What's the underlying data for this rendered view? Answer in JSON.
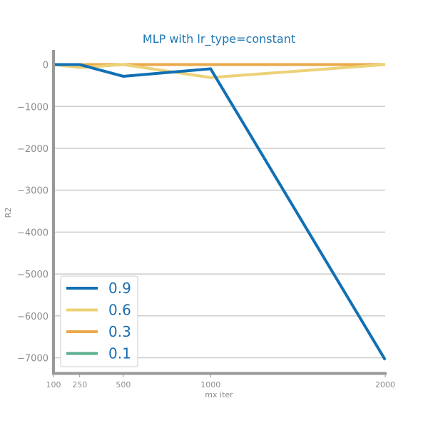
{
  "chart_data": {
    "type": "line",
    "title": "MLP with lr_type=constant",
    "xlabel": "mx iter",
    "ylabel": "R2",
    "x": [
      100,
      250,
      500,
      1000,
      2000
    ],
    "x_ticks": [
      100,
      250,
      500,
      1000,
      2000
    ],
    "y_ticks": [
      0,
      -1000,
      -2000,
      -3000,
      -4000,
      -5000,
      -6000,
      -7000
    ],
    "y_tick_labels": [
      "0",
      "−1000",
      "−2000",
      "−3000",
      "−4000",
      "−5000",
      "−6000",
      "−7000"
    ],
    "xlim": [
      100,
      2000
    ],
    "ylim": [
      -7400,
      350
    ],
    "grid": "horizontal",
    "legend_position": "lower-left",
    "series": [
      {
        "name": "0.9",
        "color": "#1170b4",
        "values": [
          0,
          0,
          -280,
          -100,
          -7050
        ]
      },
      {
        "name": "0.6",
        "color": "#ecd277",
        "values": [
          0,
          -70,
          0,
          -310,
          0
        ]
      },
      {
        "name": "0.3",
        "color": "#eaa94a",
        "values": [
          0,
          0,
          0,
          0,
          0
        ]
      },
      {
        "name": "0.1",
        "color": "#5aaf8f",
        "values": [
          0,
          0,
          0,
          0,
          0
        ]
      }
    ]
  }
}
